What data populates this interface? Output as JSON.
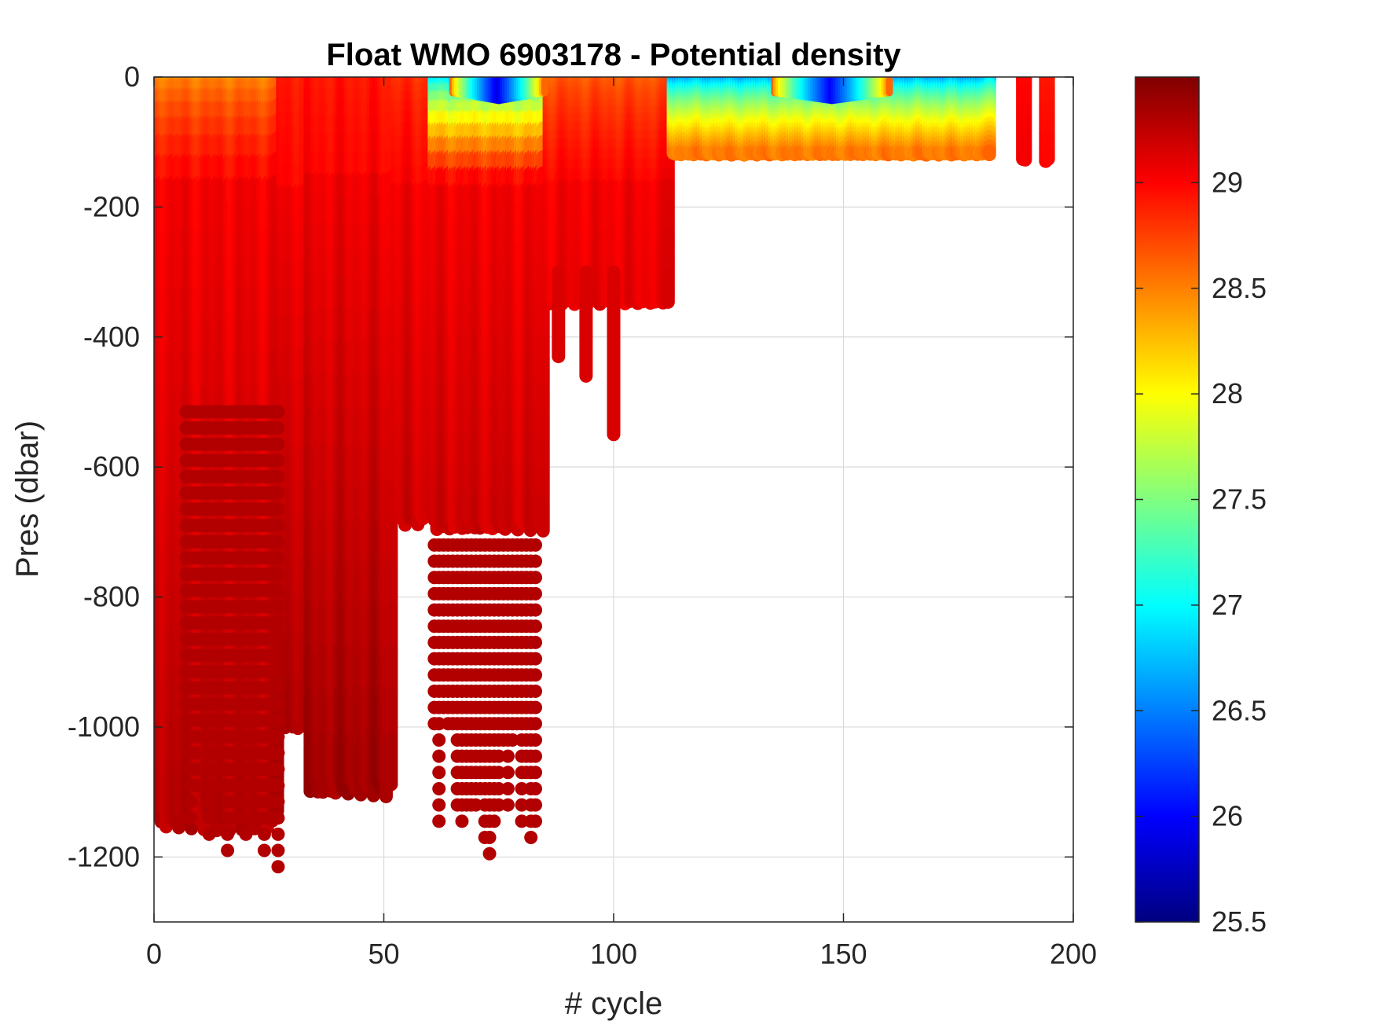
{
  "chart_data": {
    "type": "scatter",
    "title": "Float WMO 6903178 - Potential density",
    "xlabel": "# cycle",
    "ylabel": "Pres (dbar)",
    "xlim": [
      0,
      200
    ],
    "ylim": [
      -1300,
      0
    ],
    "xticks": [
      0,
      50,
      100,
      150,
      200
    ],
    "yticks": [
      0,
      -200,
      -400,
      -600,
      -800,
      -1000,
      -1200
    ],
    "xtick_labels": [
      "0",
      "50",
      "100",
      "150",
      "200"
    ],
    "ytick_labels": [
      "0",
      "-200",
      "-400",
      "-600",
      "-800",
      "-1000",
      "-1200"
    ],
    "grid": true,
    "colormap": "jet",
    "colorbar": {
      "range": [
        25.5,
        29.5
      ],
      "ticks": [
        25.5,
        26,
        26.5,
        27,
        27.5,
        28,
        28.5,
        29
      ],
      "tick_labels": [
        "25.5",
        "26",
        "26.5",
        "27",
        "27.5",
        "28",
        "28.5",
        "29"
      ]
    },
    "profiles": [
      {
        "cycles": [
          1,
          27
        ],
        "max_depth": -1160,
        "surface_density": 28.4,
        "deep_density": 29.3
      },
      {
        "cycles": [
          28,
          33
        ],
        "max_depth": -1010,
        "surface_density": 28.9,
        "deep_density": 29.35
      },
      {
        "cycles": [
          34,
          52
        ],
        "max_depth": -1110,
        "surface_density": 28.9,
        "deep_density": 29.38
      },
      {
        "cycles": [
          53,
          60
        ],
        "max_depth": -690,
        "surface_density": 28.8,
        "deep_density": 29.2
      },
      {
        "cycles": [
          61,
          85
        ],
        "max_depth": -700,
        "surface_density": 26.6,
        "deep_density": 29.2
      },
      {
        "cycles": [
          86,
          112
        ],
        "max_depth": -350,
        "surface_density": 28.6,
        "deep_density": 29.1
      },
      {
        "cycles": [
          113,
          182
        ],
        "max_depth": -120,
        "surface_density": 26.4,
        "deep_density": 29.3
      },
      {
        "cycles": [
          189,
          190
        ],
        "max_depth": -130,
        "surface_density": 28.9,
        "deep_density": 29.2
      },
      {
        "cycles": [
          194,
          195
        ],
        "max_depth": -130,
        "surface_density": 28.9,
        "deep_density": 29.2
      }
    ],
    "isolated_profiles": [
      {
        "cycle": 88,
        "max_depth": -430
      },
      {
        "cycle": 94,
        "max_depth": -460
      },
      {
        "cycle": 100,
        "max_depth": -550
      }
    ],
    "deep_sampled_profiles": [
      {
        "cycles": [
          7,
          27
        ],
        "top_depth": -515,
        "max_depth": -1220
      },
      {
        "cycles": [
          61,
          83
        ],
        "top_depth": -720,
        "max_depth": -1210
      }
    ],
    "low_density_patches": [
      {
        "cycles": [
          65,
          85
        ],
        "depth": -5,
        "density": 25.9
      },
      {
        "cycles": [
          135,
          160
        ],
        "depth": -5,
        "density": 26.0
      }
    ]
  }
}
